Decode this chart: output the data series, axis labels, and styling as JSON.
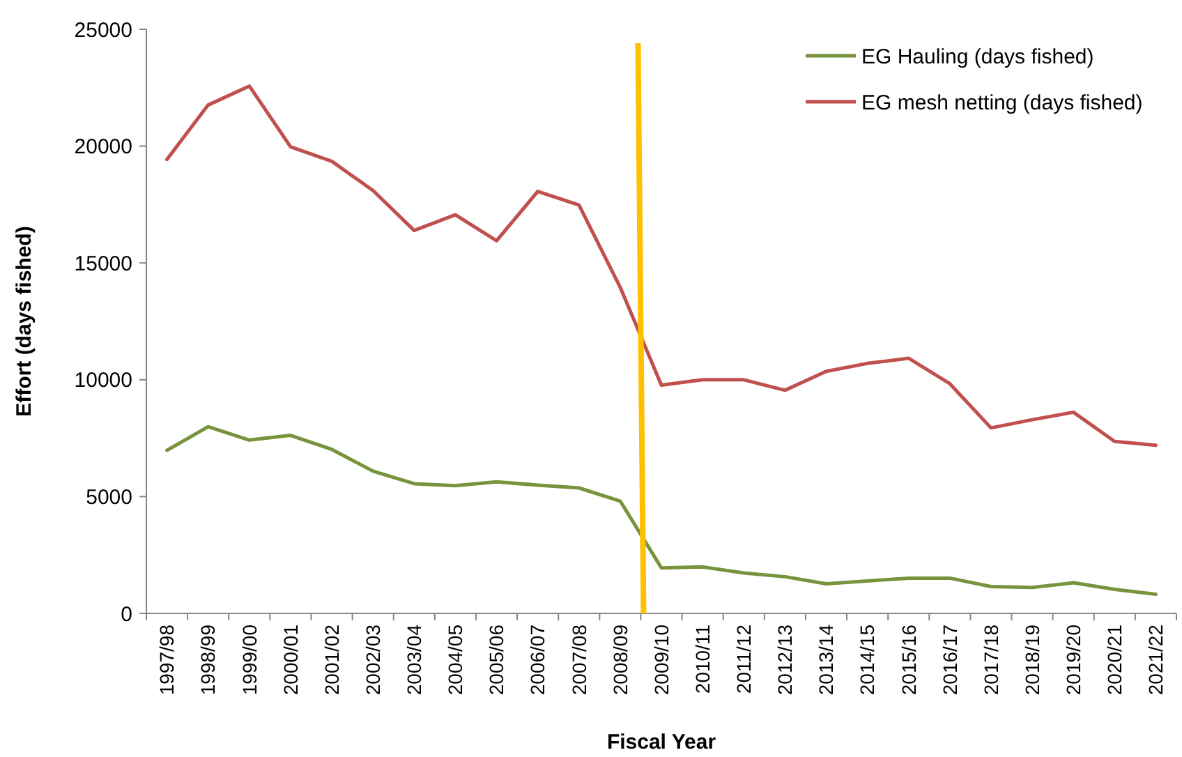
{
  "chart_data": {
    "type": "line",
    "xlabel": "Fiscal Year",
    "ylabel": "Effort (days fished)",
    "categories": [
      "1997/98",
      "1998/99",
      "1999/00",
      "2000/01",
      "2001/02",
      "2002/03",
      "2003/04",
      "2004/05",
      "2005/06",
      "2006/07",
      "2007/08",
      "2008/09",
      "2009/10",
      "2010/11",
      "2011/12",
      "2012/13",
      "2013/14",
      "2014/15",
      "2015/16",
      "2016/17",
      "2017/18",
      "2018/19",
      "2019/20",
      "2020/21",
      "2021/22"
    ],
    "series": [
      {
        "name": "EG Hauling (days fished)",
        "color": "#77933c",
        "values": [
          6980,
          7990,
          7420,
          7620,
          7020,
          6090,
          5550,
          5470,
          5630,
          5490,
          5370,
          4810,
          1950,
          1990,
          1730,
          1570,
          1270,
          1390,
          1510,
          1510,
          1150,
          1110,
          1310,
          1030,
          820
        ]
      },
      {
        "name": "EG mesh netting (days fished)",
        "color": "#c0504d",
        "values": [
          19430,
          21760,
          22570,
          19970,
          19350,
          18100,
          16390,
          17060,
          15950,
          18060,
          17480,
          13960,
          9770,
          10000,
          10000,
          9550,
          10360,
          10700,
          10920,
          9830,
          7940,
          8290,
          8610,
          7360,
          7200
        ]
      }
    ],
    "ylim": [
      0,
      25000
    ],
    "yticks": [
      0,
      5000,
      10000,
      15000,
      20000,
      25000
    ],
    "legend": "top right",
    "grid": false,
    "marker": "none",
    "line_style": "solid"
  }
}
